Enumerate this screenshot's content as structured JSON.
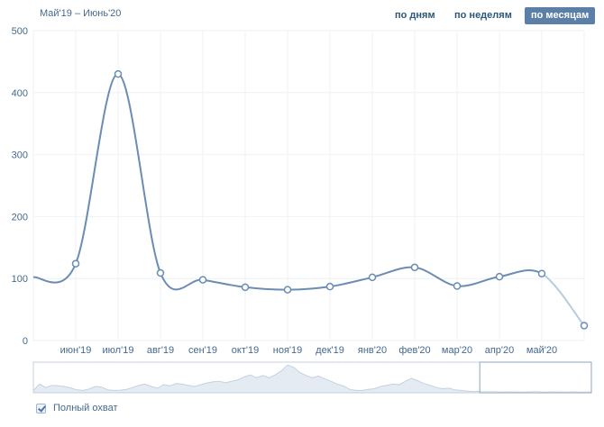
{
  "header": {
    "range_label": "Май'19 – Июнь'20",
    "periods": {
      "days": "по дням",
      "weeks": "по неделям",
      "months": "по месяцам",
      "active": "months"
    }
  },
  "colors": {
    "line": "#6b8cb3",
    "line_tail": "#b8cce0",
    "grid": "#eef2f6",
    "axis_text": "#45688e",
    "overview_fill": "#e5ebf2",
    "active_button": "#5b7fa6"
  },
  "chart_data": {
    "type": "line",
    "title": "",
    "xlabel": "",
    "ylabel": "",
    "ylim": [
      0,
      500
    ],
    "yticks": [
      0,
      100,
      200,
      300,
      400,
      500
    ],
    "grid": true,
    "x": [
      "",
      "июн'19",
      "июл'19",
      "авг'19",
      "сен'19",
      "окт'19",
      "ноя'19",
      "дек'19",
      "янв'20",
      "фев'20",
      "мар'20",
      "апр'20",
      "май'20",
      ""
    ],
    "series": [
      {
        "values": [
          102,
          124,
          430,
          109,
          98,
          86,
          82,
          87,
          102,
          118,
          88,
          103,
          108,
          24
        ],
        "markers": [
          false,
          true,
          true,
          true,
          true,
          true,
          true,
          true,
          true,
          true,
          true,
          true,
          true,
          true
        ],
        "dimmed_last_segment": true
      }
    ],
    "overview": {
      "values": [
        8,
        30,
        18,
        26,
        24,
        22,
        17,
        10,
        8,
        13,
        22,
        20,
        10,
        8,
        9,
        12,
        18,
        26,
        30,
        22,
        16,
        28,
        24,
        32,
        30,
        26,
        22,
        28,
        34,
        38,
        40,
        35,
        40,
        45,
        55,
        62,
        52,
        60,
        52,
        62,
        76,
        96,
        88,
        70,
        60,
        52,
        58,
        48,
        40,
        30,
        24,
        12,
        8,
        8,
        12,
        14,
        22,
        26,
        30,
        28,
        40,
        50,
        42,
        32,
        26,
        18,
        14,
        16,
        10,
        8,
        6,
        4,
        6,
        4,
        5,
        4,
        3,
        4,
        3,
        3,
        4,
        5,
        3,
        3,
        4,
        3,
        3,
        4,
        3,
        3,
        3
      ],
      "selection": [
        0.8,
        1.0
      ]
    }
  },
  "footer": {
    "checkbox_label": "Полный охват",
    "checked": true
  }
}
